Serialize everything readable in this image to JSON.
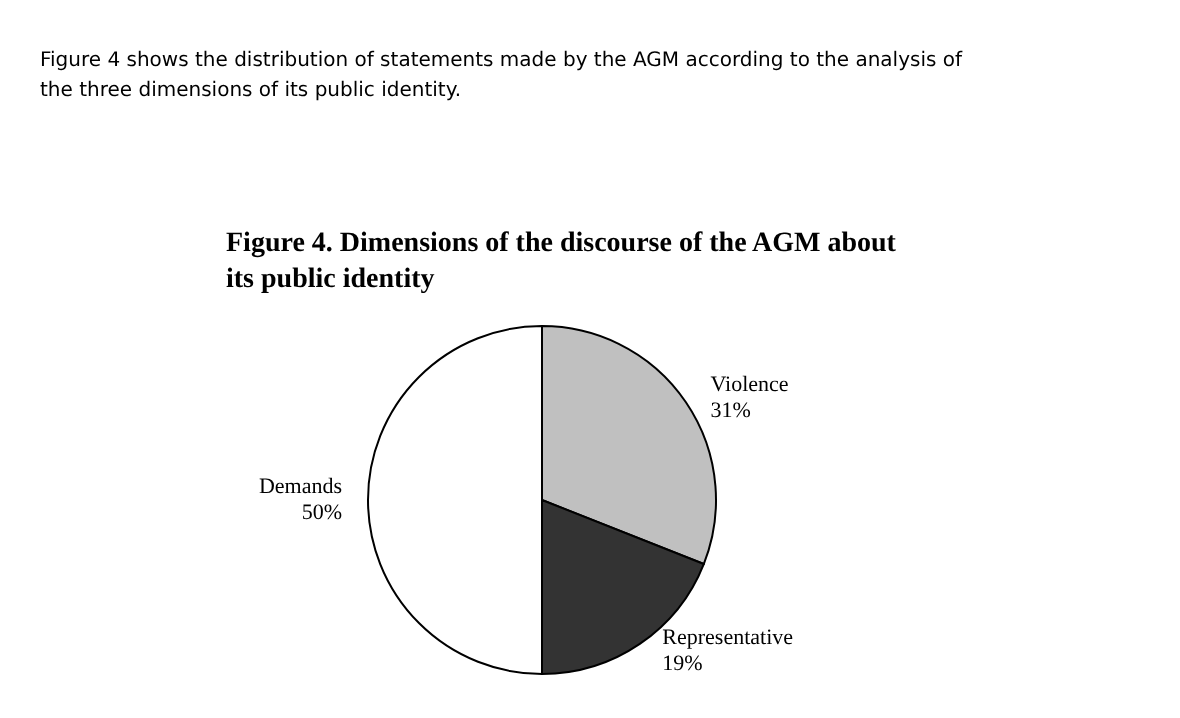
{
  "chart_data": {
    "type": "pie",
    "title": "Figure 4. Dimensions of the discourse of the AGM about its public identity",
    "annotations": [
      "Figure 4 shows the distribution of statements made by the AGM according to the analysis of the three dimensions of its public identity."
    ],
    "categories": [
      "Violence",
      "Representative",
      "Demands"
    ],
    "values": [
      31,
      19,
      50
    ],
    "colors": [
      "#c0c0c0",
      "#333333",
      "#ffffff"
    ],
    "value_labels": [
      "31%",
      "19%",
      "50%"
    ]
  }
}
